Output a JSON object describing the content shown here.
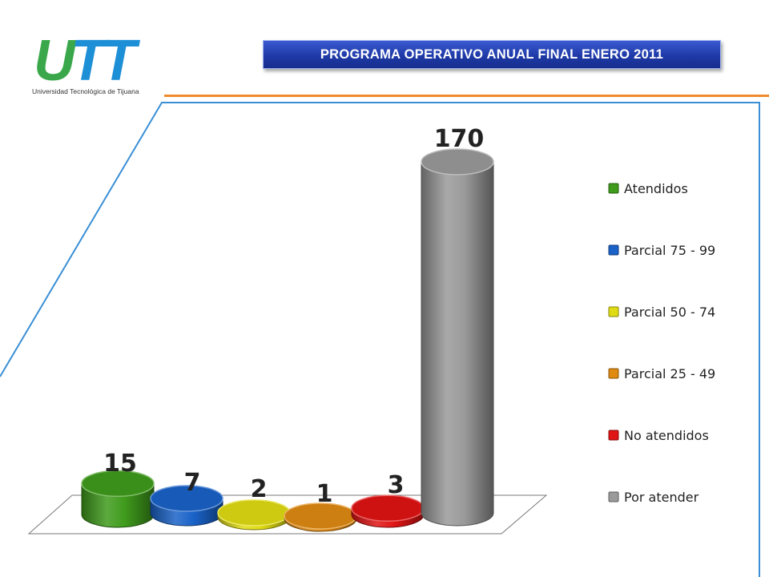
{
  "header": {
    "logo_text": "UTT",
    "logo_subtitle": "Universidad Tecnológica de Tijuana",
    "title": "PROGRAMA OPERATIVO ANUAL FINAL ENERO 2011",
    "colors": {
      "logo_green": "#3aa84a",
      "logo_blue": "#1d8fd6",
      "title_bg": "#2441b5",
      "accent_line": "#f08a2c"
    }
  },
  "chart_data": {
    "type": "bar",
    "style": "3d-cylinder",
    "title": "",
    "xlabel": "",
    "ylabel": "",
    "legend_position": "right",
    "grid": false,
    "categories": [
      "Atendidos",
      "Parcial 75 - 99",
      "Parcial 50 - 74",
      "Parcial 25 - 49",
      "No atendidos",
      "Por atender"
    ],
    "values": [
      15,
      7,
      2,
      1,
      3,
      170
    ],
    "data_labels": [
      "15",
      "7",
      "2",
      "1",
      "3",
      "170"
    ],
    "colors": [
      "#3f9b1c",
      "#1a62c8",
      "#e0dc14",
      "#e08a12",
      "#e01414",
      "#9a9a9a"
    ],
    "ylim": [
      0,
      170
    ]
  }
}
